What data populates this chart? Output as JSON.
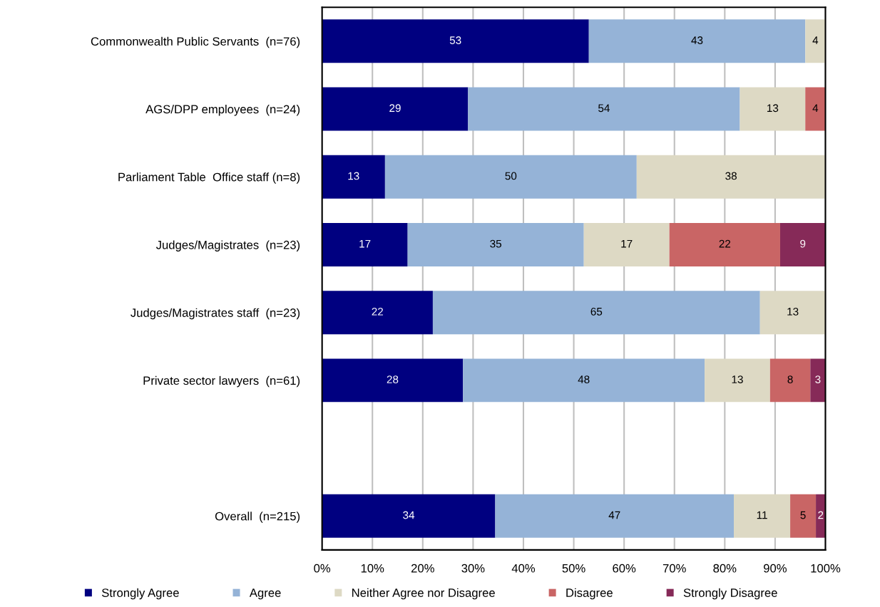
{
  "chart_data": {
    "type": "bar",
    "orientation": "horizontal",
    "stacked": true,
    "categories": [
      "Commonwealth Public Servants  (n=76)",
      "AGS/DPP employees  (n=24)",
      "Parliament Table  Office staff (n=8)",
      "Judges/Magistrates  (n=23)",
      "Judges/Magistrates staff  (n=23)",
      "Private sector lawyers  (n=61)",
      null,
      "Overall  (n=215)"
    ],
    "series": [
      {
        "name": "Strongly Agree",
        "color": "#000080",
        "values": [
          53,
          29,
          12.5,
          17,
          22,
          28,
          null,
          34.4
        ],
        "value_labels": [
          "53",
          "29",
          "13",
          "17",
          "22",
          "28",
          null,
          "34"
        ]
      },
      {
        "name": "Agree",
        "color": "#95b3d7",
        "values": [
          43,
          54,
          50,
          35,
          65,
          48,
          null,
          47.4
        ],
        "value_labels": [
          "43",
          "54",
          "50",
          "35",
          "65",
          "48",
          null,
          "47"
        ]
      },
      {
        "name": "Neither Agree nor Disagree",
        "color": "#ddd9c4",
        "values": [
          4,
          13,
          37.5,
          17,
          13,
          13,
          null,
          11.2
        ],
        "value_labels": [
          "4",
          "13",
          "38",
          "17",
          "13",
          "13",
          null,
          "11"
        ]
      },
      {
        "name": "Disagree",
        "color": "#c96565",
        "values": [
          null,
          4,
          null,
          22,
          null,
          8,
          null,
          5.1
        ],
        "value_labels": [
          null,
          "4",
          null,
          "22",
          null,
          "8",
          null,
          "5"
        ]
      },
      {
        "name": "Strongly Disagree",
        "color": "#862a58",
        "values": [
          null,
          null,
          null,
          9,
          null,
          3,
          null,
          1.9
        ],
        "value_labels": [
          null,
          null,
          null,
          "9",
          null,
          "3",
          null,
          "2"
        ]
      }
    ],
    "xlim": [
      0,
      100
    ],
    "xticks": [
      {
        "value": 0,
        "label": "0%"
      },
      {
        "value": 10,
        "label": "10%"
      },
      {
        "value": 20,
        "label": "20%"
      },
      {
        "value": 30,
        "label": "30%"
      },
      {
        "value": 40,
        "label": "40%"
      },
      {
        "value": 50,
        "label": "50%"
      },
      {
        "value": 60,
        "label": "60%"
      },
      {
        "value": 70,
        "label": "70%"
      },
      {
        "value": 80,
        "label": "80%"
      },
      {
        "value": 90,
        "label": "90%"
      },
      {
        "value": 100,
        "label": "100%"
      }
    ],
    "grid": "x",
    "legend": "bottom"
  }
}
